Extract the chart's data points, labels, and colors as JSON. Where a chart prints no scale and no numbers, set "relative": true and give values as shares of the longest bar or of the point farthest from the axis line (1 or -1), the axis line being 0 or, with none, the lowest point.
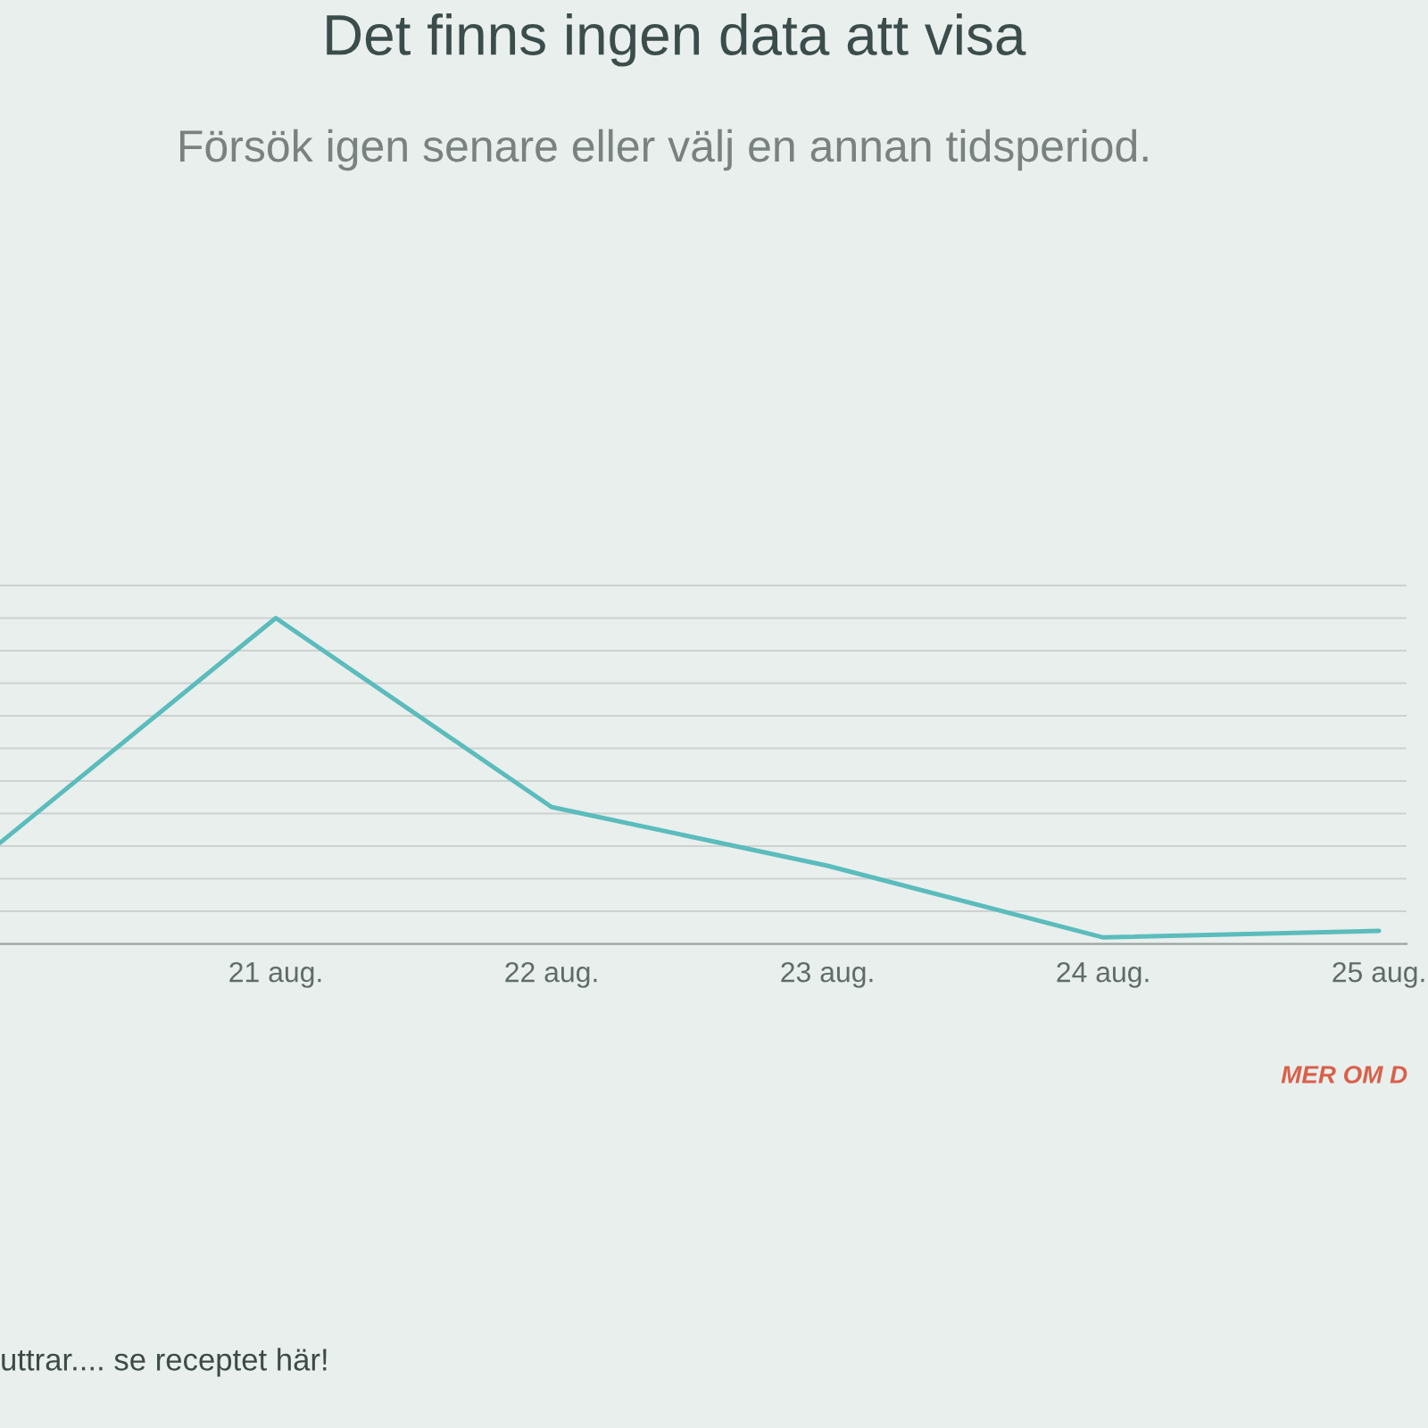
{
  "chart_data": {
    "type": "line",
    "title": "Det finns ingen data att visa",
    "subtitle": "Försök igen senare eller välj en annan tidsperiod.",
    "categories": [
      null,
      "21 aug.",
      "22 aug.",
      "23 aug.",
      "24 aug.",
      "25 aug."
    ],
    "values": [
      0.31,
      1,
      0.42,
      0.24,
      0.02,
      0.04
    ],
    "color": "#5bbcbc",
    "relative": true,
    "grid": "y",
    "tick_labels": "x",
    "annotations": [
      "MER OM D",
      "uttrar.... se receptet här!"
    ]
  }
}
